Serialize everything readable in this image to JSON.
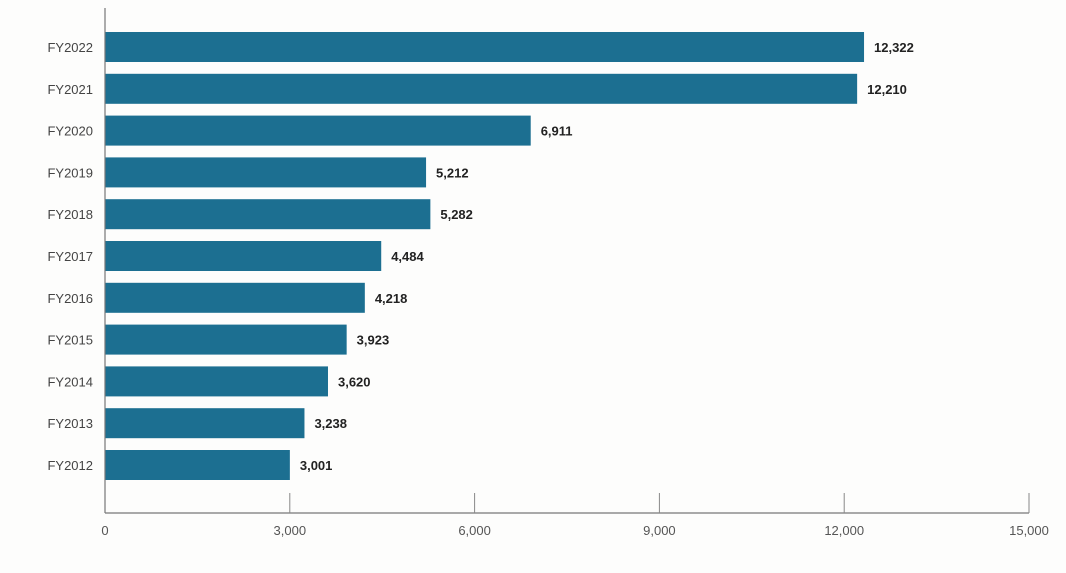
{
  "chart_data": {
    "type": "bar",
    "orientation": "horizontal",
    "title": "",
    "xlabel": "",
    "ylabel": "",
    "categories": [
      "FY2022",
      "FY2021",
      "FY2020",
      "FY2019",
      "FY2018",
      "FY2017",
      "FY2016",
      "FY2015",
      "FY2014",
      "FY2013",
      "FY2012"
    ],
    "values": [
      12322,
      12210,
      6911,
      5212,
      5282,
      4484,
      4218,
      3923,
      3620,
      3238,
      3001
    ],
    "value_labels": [
      "12,322",
      "12,210",
      "6,911",
      "5,212",
      "5,282",
      "4,484",
      "4,218",
      "3,923",
      "3,620",
      "3,238",
      "3,001"
    ],
    "xlim": [
      0,
      15000
    ],
    "xticks": [
      0,
      3000,
      6000,
      9000,
      12000,
      15000
    ],
    "xtick_labels": [
      "0",
      "3,000",
      "6,000",
      "9,000",
      "12,000",
      "15,000"
    ],
    "grid": false,
    "bar_color": "#1c6f91"
  }
}
